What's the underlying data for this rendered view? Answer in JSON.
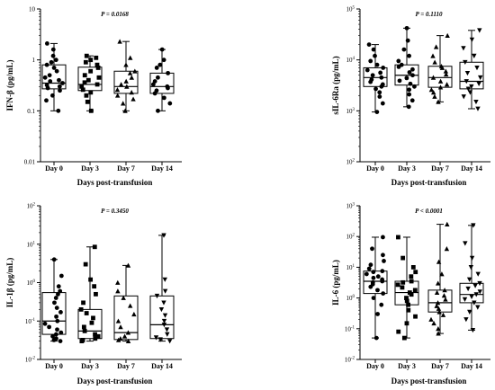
{
  "figure": {
    "x_axis_title": "Days post-transfusion",
    "categories": [
      "Day 0",
      "Day 3",
      "Day 7",
      "Day 14"
    ]
  },
  "chart_data": [
    {
      "type": "box",
      "ylabel": "IFN-β (pg/mL)",
      "p_value": "P = 0.0168",
      "y_scale": "log",
      "ylim": [
        0.01,
        10
      ],
      "y_ticks": [
        {
          "v": 0.01,
          "label": "0.01"
        },
        {
          "v": 0.1,
          "label": "0.1"
        },
        {
          "v": 1,
          "label": "1"
        },
        {
          "v": 10,
          "label": "10"
        }
      ],
      "categories": [
        "Day 0",
        "Day 3",
        "Day 7",
        "Day 14"
      ],
      "markers": [
        "circle",
        "square",
        "triangle",
        "circle"
      ],
      "boxes": [
        {
          "min": 0.1,
          "q1": 0.27,
          "median": 0.35,
          "q3": 0.8,
          "max": 2.1
        },
        {
          "min": 0.1,
          "q1": 0.25,
          "median": 0.33,
          "q3": 0.72,
          "max": 1.2
        },
        {
          "min": 0.1,
          "q1": 0.22,
          "median": 0.3,
          "q3": 0.6,
          "max": 2.3
        },
        {
          "min": 0.1,
          "q1": 0.22,
          "median": 0.3,
          "q3": 0.55,
          "max": 1.6
        }
      ],
      "points": [
        [
          0.1,
          0.16,
          0.2,
          0.25,
          0.28,
          0.3,
          0.32,
          0.35,
          0.38,
          0.4,
          0.45,
          0.5,
          0.6,
          0.7,
          0.8,
          0.9,
          1.0,
          1.2,
          1.6,
          2.1
        ],
        [
          0.1,
          0.15,
          0.2,
          0.23,
          0.26,
          0.3,
          0.33,
          0.36,
          0.4,
          0.45,
          0.5,
          0.6,
          0.7,
          0.8,
          0.9,
          1.0,
          1.1,
          1.2
        ],
        [
          0.1,
          0.14,
          0.17,
          0.2,
          0.23,
          0.26,
          0.3,
          0.33,
          0.38,
          0.45,
          0.55,
          0.6,
          0.8,
          1.1,
          2.3
        ],
        [
          0.1,
          0.14,
          0.18,
          0.22,
          0.25,
          0.28,
          0.3,
          0.33,
          0.38,
          0.45,
          0.55,
          0.7,
          0.8,
          1.0,
          1.6
        ]
      ]
    },
    {
      "type": "box",
      "ylabel": "sIL-6Ra (pg/mL)",
      "p_value": "P = 0.1110",
      "y_scale": "log",
      "ylim": [
        100,
        100000
      ],
      "y_ticks": [
        {
          "v": 100,
          "label": "10",
          "sup": "2"
        },
        {
          "v": 1000,
          "label": "10",
          "sup": "3"
        },
        {
          "v": 10000,
          "label": "10",
          "sup": "4"
        },
        {
          "v": 100000,
          "label": "10",
          "sup": "5"
        }
      ],
      "categories": [
        "Day 0",
        "Day 3",
        "Day 7",
        "Day 14"
      ],
      "markers": [
        "circle",
        "circle",
        "triangle",
        "triangle-down"
      ],
      "boxes": [
        {
          "min": 950,
          "q1": 3000,
          "median": 4500,
          "q3": 7000,
          "max": 20000
        },
        {
          "min": 1200,
          "q1": 3200,
          "median": 5000,
          "q3": 8000,
          "max": 42000
        },
        {
          "min": 1500,
          "q1": 2900,
          "median": 4500,
          "q3": 7500,
          "max": 30000
        },
        {
          "min": 1100,
          "q1": 2700,
          "median": 3800,
          "q3": 9000,
          "max": 38000
        }
      ],
      "points": [
        [
          950,
          1400,
          1900,
          2300,
          2700,
          3000,
          3300,
          3700,
          4100,
          4500,
          5000,
          5600,
          6300,
          7000,
          8000,
          9500,
          12000,
          16000,
          20000
        ],
        [
          1200,
          1600,
          2100,
          2600,
          3000,
          3400,
          3900,
          4400,
          5000,
          5700,
          6500,
          7300,
          8000,
          9500,
          12000,
          16000,
          24000,
          42000
        ],
        [
          1500,
          1900,
          2300,
          2600,
          2900,
          3300,
          3800,
          4500,
          5200,
          6000,
          7000,
          7500,
          9000,
          12000,
          18000,
          30000
        ],
        [
          1100,
          1500,
          1900,
          2300,
          2700,
          3000,
          3400,
          3800,
          4500,
          5500,
          7000,
          9000,
          12000,
          17000,
          25000,
          38000
        ]
      ]
    },
    {
      "type": "box",
      "ylabel": "IL-1β (pg/mL)",
      "p_value": "P = 0.3450",
      "y_scale": "log",
      "ylim": [
        0.01,
        100
      ],
      "y_ticks": [
        {
          "v": 0.01,
          "label": "10",
          "sup": "-2"
        },
        {
          "v": 0.1,
          "label": "10",
          "sup": "-1"
        },
        {
          "v": 1,
          "label": "10",
          "sup": "0"
        },
        {
          "v": 10,
          "label": "10",
          "sup": "1"
        },
        {
          "v": 100,
          "label": "10",
          "sup": "2"
        }
      ],
      "categories": [
        "Day 0",
        "Day 3",
        "Day 7",
        "Day 14"
      ],
      "markers": [
        "circle",
        "square",
        "triangle",
        "triangle-down"
      ],
      "boxes": [
        {
          "min": 0.03,
          "q1": 0.045,
          "median": 0.1,
          "q3": 0.55,
          "max": 4
        },
        {
          "min": 0.03,
          "q1": 0.035,
          "median": 0.055,
          "q3": 0.2,
          "max": 8.5
        },
        {
          "min": 0.03,
          "q1": 0.033,
          "median": 0.05,
          "q3": 0.45,
          "max": 2.8
        },
        {
          "min": 0.03,
          "q1": 0.035,
          "median": 0.08,
          "q3": 0.45,
          "max": 17
        }
      ],
      "points": [
        [
          0.03,
          0.032,
          0.035,
          0.04,
          0.045,
          0.05,
          0.06,
          0.07,
          0.085,
          0.1,
          0.13,
          0.17,
          0.22,
          0.3,
          0.4,
          0.5,
          0.6,
          0.8,
          1.5,
          4
        ],
        [
          0.03,
          0.032,
          0.035,
          0.04,
          0.045,
          0.055,
          0.07,
          0.09,
          0.12,
          0.16,
          0.2,
          0.3,
          0.5,
          0.8,
          1.2,
          3,
          8.5
        ],
        [
          0.03,
          0.032,
          0.035,
          0.04,
          0.05,
          0.07,
          0.1,
          0.15,
          0.25,
          0.4,
          0.6,
          1.0,
          2.8
        ],
        [
          0.03,
          0.033,
          0.037,
          0.045,
          0.06,
          0.08,
          0.1,
          0.14,
          0.2,
          0.3,
          0.45,
          0.6,
          1.2,
          17
        ]
      ]
    },
    {
      "type": "box",
      "ylabel": "IL-6 (pg/mL)",
      "p_value": "P < 0.0001",
      "y_scale": "log",
      "ylim": [
        0.01,
        1000
      ],
      "y_ticks": [
        {
          "v": 0.01,
          "label": "10",
          "sup": "-2"
        },
        {
          "v": 0.1,
          "label": "10",
          "sup": "-1"
        },
        {
          "v": 1,
          "label": "10",
          "sup": "0"
        },
        {
          "v": 10,
          "label": "10",
          "sup": "1"
        },
        {
          "v": 100,
          "label": "10",
          "sup": "2"
        },
        {
          "v": 1000,
          "label": "10",
          "sup": "3"
        }
      ],
      "categories": [
        "Day 0",
        "Day 3",
        "Day 7",
        "Day 14"
      ],
      "markers": [
        "circle",
        "square",
        "triangle",
        "triangle-down"
      ],
      "boxes": [
        {
          "min": 0.05,
          "q1": 1.4,
          "median": 3.5,
          "q3": 7.5,
          "max": 95
        },
        {
          "min": 0.05,
          "q1": 0.6,
          "median": 1.5,
          "q3": 3.5,
          "max": 95
        },
        {
          "min": 0.07,
          "q1": 0.35,
          "median": 0.7,
          "q3": 1.8,
          "max": 250
        },
        {
          "min": 0.09,
          "q1": 0.7,
          "median": 1.3,
          "q3": 3.0,
          "max": 230
        }
      ],
      "points": [
        [
          0.05,
          0.3,
          0.6,
          1.0,
          1.4,
          1.8,
          2.3,
          2.8,
          3.2,
          3.5,
          4,
          4.5,
          5,
          6,
          7,
          7.5,
          9,
          12,
          16,
          25,
          40,
          95
        ],
        [
          0.05,
          0.08,
          0.15,
          0.25,
          0.4,
          0.6,
          0.8,
          1.0,
          1.3,
          1.5,
          1.8,
          2.2,
          2.7,
          3.2,
          3.5,
          5,
          7,
          10,
          20,
          95
        ],
        [
          0.07,
          0.1,
          0.15,
          0.2,
          0.28,
          0.35,
          0.45,
          0.55,
          0.7,
          0.9,
          1.2,
          1.5,
          1.8,
          3,
          6,
          15,
          40,
          250
        ],
        [
          0.09,
          0.2,
          0.35,
          0.5,
          0.7,
          0.9,
          1.1,
          1.3,
          1.6,
          2.0,
          2.5,
          3.0,
          4,
          6,
          10,
          20,
          60,
          230
        ]
      ]
    }
  ]
}
